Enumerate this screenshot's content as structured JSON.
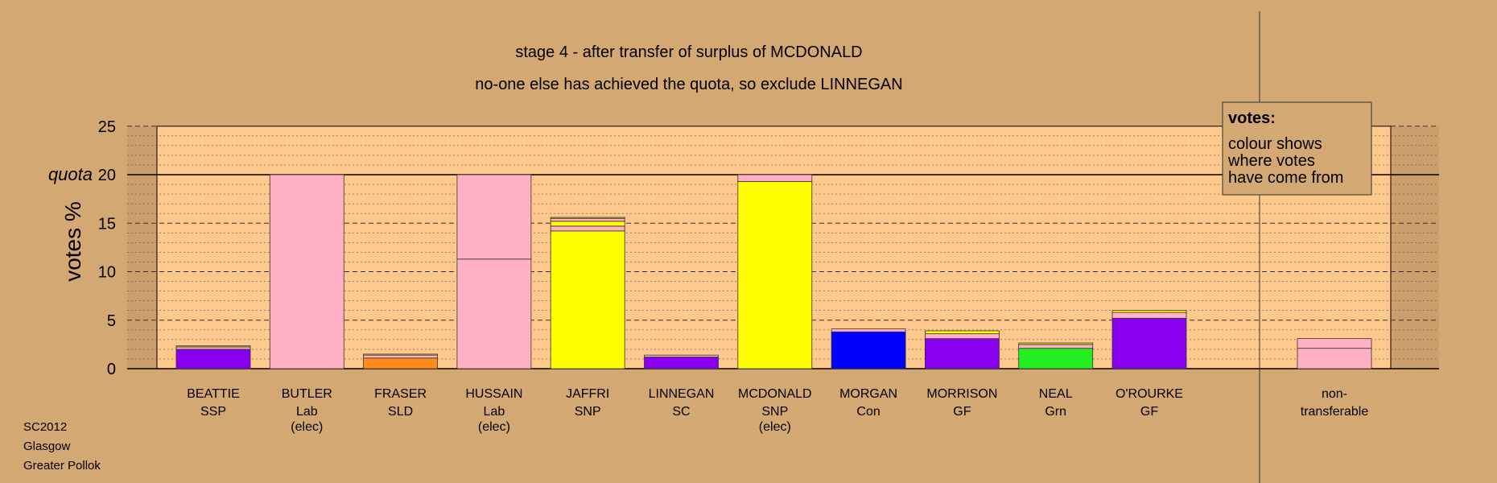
{
  "chart_data": {
    "type": "bar",
    "title": "stage 4 - after transfer of surplus of MCDONALD",
    "subtitle": "no-one else has achieved the quota, so exclude LINNEGAN",
    "ylabel": "votes %",
    "ylim": [
      0,
      25
    ],
    "yticks": [
      "0",
      "5",
      "10",
      "15",
      "20",
      "25"
    ],
    "quota": 20,
    "quota_label": "quota",
    "legend": {
      "title": "votes:",
      "lines": [
        "colour shows",
        "where votes",
        "have come from"
      ]
    },
    "categories": [
      {
        "name": "BEATTIE",
        "party": "SSP",
        "note": "",
        "segments": [
          {
            "value": 2.0,
            "color": "#8800ee"
          },
          {
            "value": 0.25,
            "color": "#ffb0c4"
          },
          {
            "value": 0.1,
            "color": "#ffff00"
          }
        ]
      },
      {
        "name": "BUTLER",
        "party": "Lab",
        "note": "(elec)",
        "segments": [
          {
            "value": 20.0,
            "color": "#ffb0c4"
          }
        ]
      },
      {
        "name": "FRASER",
        "party": "SLD",
        "note": "",
        "segments": [
          {
            "value": 1.1,
            "color": "#ff8c1a"
          },
          {
            "value": 0.3,
            "color": "#ffb0c4"
          },
          {
            "value": 0.1,
            "color": "#ffff00"
          }
        ]
      },
      {
        "name": "HUSSAIN",
        "party": "Lab",
        "note": "(elec)",
        "segments": [
          {
            "value": 11.3,
            "color": "#ffb0c4"
          },
          {
            "value": 8.7,
            "color": "#ffb0c4"
          }
        ]
      },
      {
        "name": "JAFFRI",
        "party": "SNP",
        "note": "",
        "segments": [
          {
            "value": 14.2,
            "color": "#ffff00"
          },
          {
            "value": 0.5,
            "color": "#ffb0c4"
          },
          {
            "value": 0.5,
            "color": "#ffff00"
          },
          {
            "value": 0.3,
            "color": "#ffb0c4"
          },
          {
            "value": 0.1,
            "color": "#ffff00"
          }
        ]
      },
      {
        "name": "LINNEGAN",
        "party": "SC",
        "note": "",
        "segments": [
          {
            "value": 1.2,
            "color": "#8800ee"
          },
          {
            "value": 0.2,
            "color": "#ffb0c4"
          }
        ]
      },
      {
        "name": "MCDONALD",
        "party": "SNP",
        "note": "(elec)",
        "segments": [
          {
            "value": 19.3,
            "color": "#ffff00"
          },
          {
            "value": 0.7,
            "color": "#ffb0c4"
          }
        ]
      },
      {
        "name": "MORGAN",
        "party": "Con",
        "note": "",
        "segments": [
          {
            "value": 3.8,
            "color": "#0000ff"
          },
          {
            "value": 0.3,
            "color": "#ffb0c4"
          }
        ]
      },
      {
        "name": "MORRISON",
        "party": "GF",
        "note": "",
        "segments": [
          {
            "value": 3.1,
            "color": "#8800ee"
          },
          {
            "value": 0.5,
            "color": "#ffb0c4"
          },
          {
            "value": 0.3,
            "color": "#ffff00"
          }
        ]
      },
      {
        "name": "NEAL",
        "party": "Grn",
        "note": "",
        "segments": [
          {
            "value": 2.1,
            "color": "#22ee22"
          },
          {
            "value": 0.4,
            "color": "#ffb0c4"
          },
          {
            "value": 0.15,
            "color": "#ffff00"
          }
        ]
      },
      {
        "name": "O'ROURKE",
        "party": "GF",
        "note": "",
        "segments": [
          {
            "value": 5.2,
            "color": "#8800ee"
          },
          {
            "value": 0.6,
            "color": "#ffb0c4"
          },
          {
            "value": 0.2,
            "color": "#ffff00"
          }
        ]
      }
    ],
    "nontransferable": {
      "line1": "non-",
      "line2": "transferable",
      "segments": [
        {
          "value": 2.1,
          "color": "#ffb0c4"
        },
        {
          "value": 1.0,
          "color": "#ffb0c4"
        }
      ]
    },
    "colors": {
      "background": "#d4a873",
      "plot_area": "#ffc88c",
      "side_area": "#cc9e6b"
    }
  },
  "footer": {
    "line1": "SC2012",
    "line2": "Glasgow",
    "line3": "Greater Pollok"
  }
}
